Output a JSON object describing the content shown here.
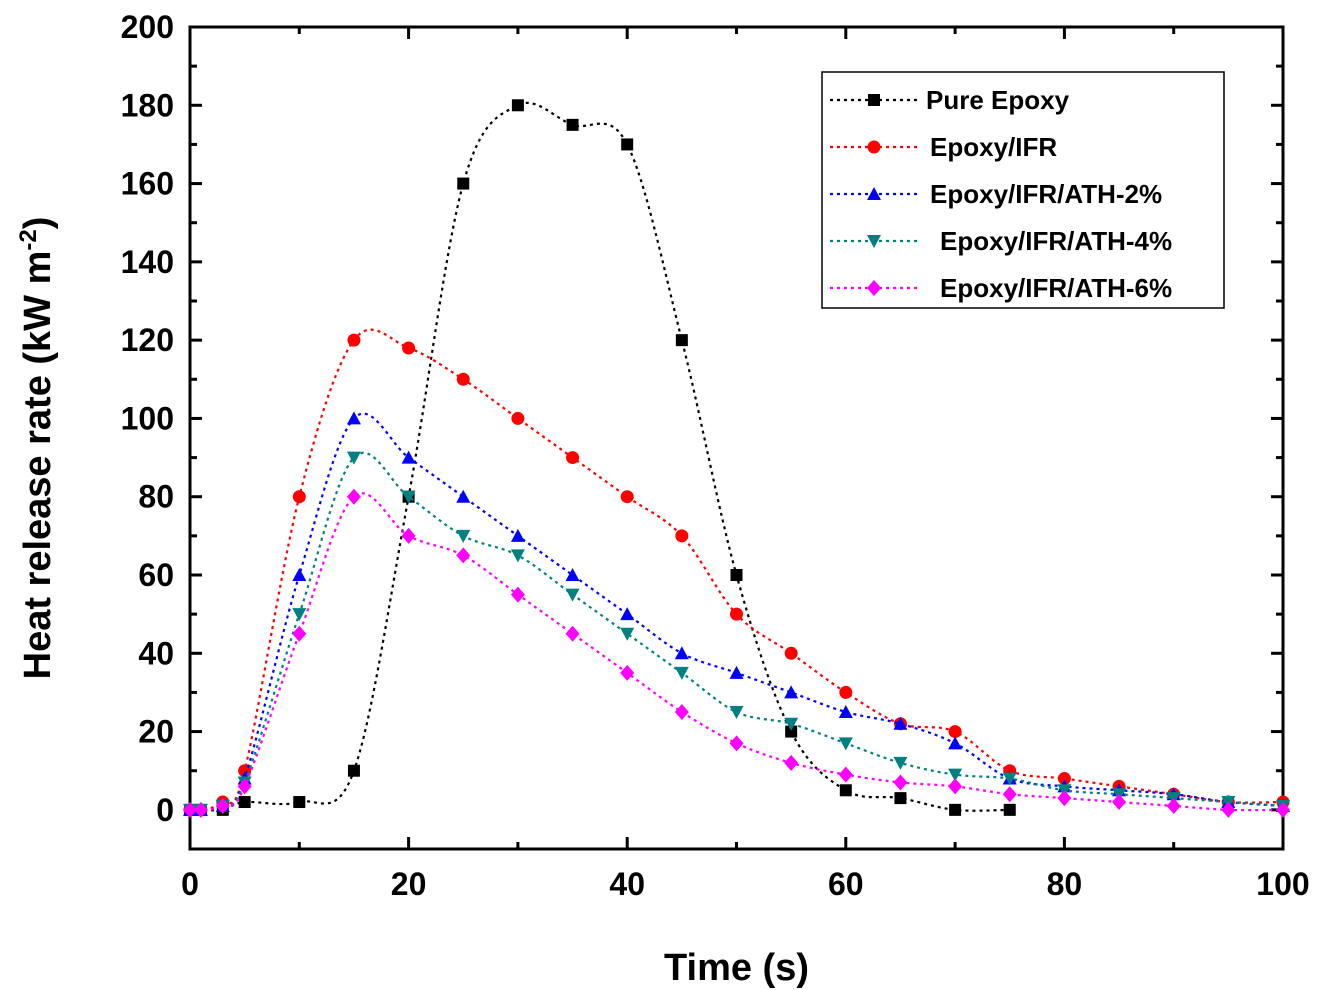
{
  "chart_data": {
    "type": "line",
    "xlabel": "Time (s)",
    "ylabel_main": "Heat release rate (kW m",
    "ylabel_sup": "-2",
    "ylabel_close": ")",
    "xlim": [
      0,
      100
    ],
    "ylim": [
      -10,
      200
    ],
    "x_ticks": [
      0,
      20,
      40,
      60,
      80,
      100
    ],
    "y_ticks": [
      0,
      20,
      40,
      60,
      80,
      100,
      120,
      140,
      160,
      180,
      200
    ],
    "grid": false,
    "legend_position": "top-right",
    "series": [
      {
        "name": "Pure Epoxy",
        "color": "#000000",
        "marker": "square",
        "x": [
          0,
          1,
          3,
          5,
          10,
          15,
          20,
          25,
          30,
          35,
          40,
          45,
          50,
          55,
          60,
          65,
          70,
          75
        ],
        "y": [
          0,
          0,
          0,
          2,
          2,
          10,
          80,
          160,
          180,
          175,
          170,
          120,
          60,
          20,
          5,
          3,
          0,
          0
        ]
      },
      {
        "name": "Epoxy/IFR",
        "color": "#ff0000",
        "marker": "circle",
        "x": [
          0,
          1,
          3,
          5,
          10,
          15,
          20,
          25,
          30,
          35,
          40,
          45,
          50,
          55,
          60,
          65,
          70,
          75,
          80,
          85,
          90,
          95,
          100
        ],
        "y": [
          0,
          0,
          2,
          10,
          80,
          120,
          118,
          110,
          100,
          90,
          80,
          70,
          50,
          40,
          30,
          22,
          20,
          10,
          8,
          6,
          4,
          2,
          2
        ]
      },
      {
        "name": "Epoxy/IFR/ATH-2%",
        "color": "#0000ff",
        "marker": "triangle-up",
        "x": [
          0,
          1,
          3,
          5,
          10,
          15,
          20,
          25,
          30,
          35,
          40,
          45,
          50,
          55,
          60,
          65,
          70,
          75,
          80,
          85,
          90,
          95,
          100
        ],
        "y": [
          0,
          0,
          1,
          8,
          60,
          100,
          90,
          80,
          70,
          60,
          50,
          40,
          35,
          30,
          25,
          22,
          17,
          8,
          6,
          5,
          4,
          2,
          1
        ]
      },
      {
        "name": "Epoxy/IFR/ATH-4%",
        "color": "#008080",
        "marker": "triangle-down",
        "x": [
          0,
          1,
          3,
          5,
          10,
          15,
          20,
          25,
          30,
          35,
          40,
          45,
          50,
          55,
          60,
          65,
          70,
          75,
          80,
          85,
          90,
          95,
          100
        ],
        "y": [
          0,
          0,
          1,
          7,
          50,
          90,
          80,
          70,
          65,
          55,
          45,
          35,
          25,
          22,
          17,
          12,
          9,
          8,
          5,
          4,
          3,
          2,
          1
        ]
      },
      {
        "name": "Epoxy/IFR/ATH-6%",
        "color": "#ff00ff",
        "marker": "diamond",
        "x": [
          0,
          1,
          3,
          5,
          10,
          15,
          20,
          25,
          30,
          35,
          40,
          45,
          50,
          55,
          60,
          65,
          70,
          75,
          80,
          85,
          90,
          95,
          100
        ],
        "y": [
          0,
          0,
          1,
          6,
          45,
          80,
          70,
          65,
          55,
          45,
          35,
          25,
          17,
          12,
          9,
          7,
          6,
          4,
          3,
          2,
          1,
          0,
          0
        ]
      }
    ]
  }
}
